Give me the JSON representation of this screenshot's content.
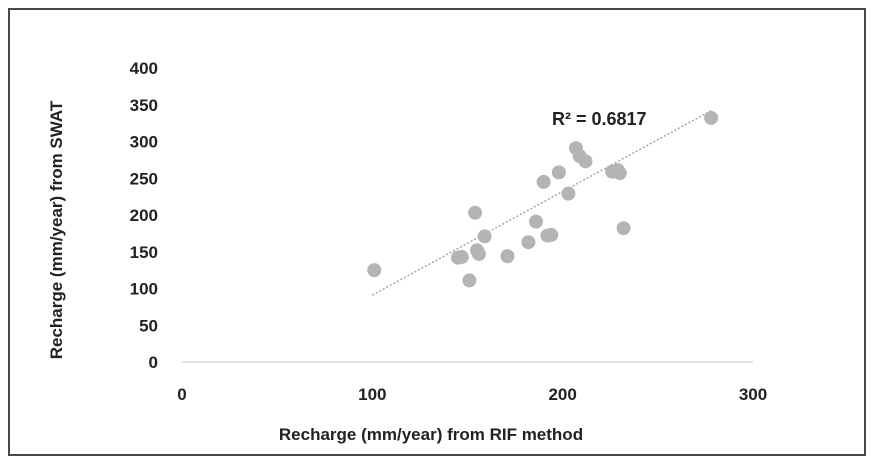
{
  "chart_data": {
    "type": "scatter",
    "xlabel": "Recharge (mm/year) from RIF method",
    "ylabel": "Recharge (mm/year) from SWAT",
    "xlim": [
      0,
      300
    ],
    "ylim": [
      0,
      400
    ],
    "x_ticks": [
      "0",
      "100",
      "200",
      "300"
    ],
    "y_ticks": [
      "0",
      "50",
      "100",
      "150",
      "200",
      "250",
      "300",
      "350",
      "400"
    ],
    "grid": false,
    "marker_color": "#b4b4b4",
    "trendline_color": "#9a9a9a",
    "annotation": "R² = 0.6817",
    "trendline": {
      "slope": 1.41,
      "intercept": -50,
      "x_range": [
        100,
        278
      ]
    },
    "points": [
      {
        "x": 101,
        "y": 125
      },
      {
        "x": 145,
        "y": 142
      },
      {
        "x": 147,
        "y": 143
      },
      {
        "x": 151,
        "y": 111
      },
      {
        "x": 154,
        "y": 203
      },
      {
        "x": 155,
        "y": 152
      },
      {
        "x": 156,
        "y": 147
      },
      {
        "x": 159,
        "y": 171
      },
      {
        "x": 171,
        "y": 144
      },
      {
        "x": 182,
        "y": 163
      },
      {
        "x": 186,
        "y": 191
      },
      {
        "x": 190,
        "y": 245
      },
      {
        "x": 192,
        "y": 172
      },
      {
        "x": 194,
        "y": 173
      },
      {
        "x": 198,
        "y": 258
      },
      {
        "x": 203,
        "y": 229
      },
      {
        "x": 207,
        "y": 291
      },
      {
        "x": 209,
        "y": 280
      },
      {
        "x": 212,
        "y": 273
      },
      {
        "x": 226,
        "y": 259
      },
      {
        "x": 229,
        "y": 261
      },
      {
        "x": 230,
        "y": 257
      },
      {
        "x": 232,
        "y": 182
      },
      {
        "x": 278,
        "y": 332
      }
    ]
  }
}
